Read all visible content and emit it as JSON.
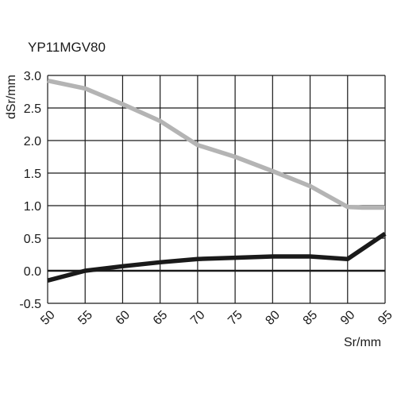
{
  "chart_data": {
    "type": "line",
    "title": "YP11MGV80",
    "xlabel": "Sr/mm",
    "ylabel": "dSr/mm",
    "xlim": [
      50,
      95
    ],
    "ylim": [
      -0.5,
      3.0
    ],
    "xticks": [
      "50",
      "55",
      "60",
      "65",
      "70",
      "75",
      "80",
      "85",
      "90",
      "95"
    ],
    "yticks": [
      "3.0",
      "2.5",
      "2.0",
      "1.5",
      "1.0",
      "0.5",
      "0.0",
      "-0.5"
    ],
    "x_tick_values": [
      50,
      55,
      60,
      65,
      70,
      75,
      80,
      85,
      90,
      95
    ],
    "y_tick_values": [
      3.0,
      2.5,
      2.0,
      1.5,
      1.0,
      0.5,
      0.0,
      -0.5
    ],
    "grid": true,
    "series": [
      {
        "color": "#b4b4b4",
        "x": [
          50,
          55,
          60,
          65,
          70,
          75,
          80,
          85,
          90,
          92,
          95
        ],
        "y": [
          2.92,
          2.8,
          2.56,
          2.3,
          1.93,
          1.75,
          1.53,
          1.3,
          0.98,
          0.97,
          0.97
        ]
      },
      {
        "color": "#1a1a1a",
        "x": [
          50,
          55,
          60,
          65,
          70,
          75,
          80,
          85,
          90,
          95
        ],
        "y": [
          -0.15,
          0.0,
          0.07,
          0.13,
          0.18,
          0.2,
          0.22,
          0.22,
          0.18,
          0.57
        ]
      }
    ]
  }
}
